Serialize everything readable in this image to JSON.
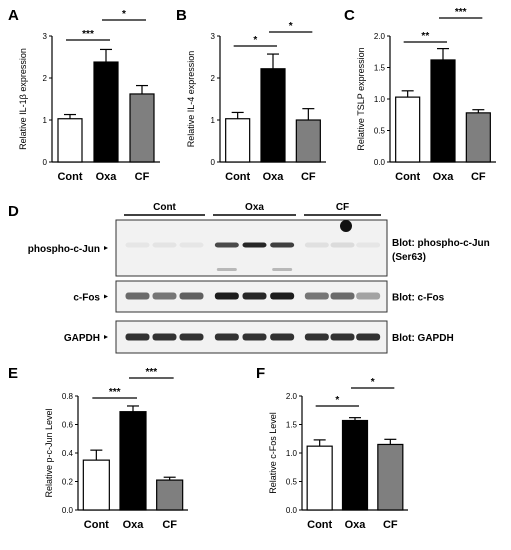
{
  "colors": {
    "cont": "#ffffff",
    "oxa": "#000000",
    "cf": "#7f7f7f",
    "axis": "#000000"
  },
  "chart_data": [
    {
      "panel": "A",
      "type": "bar",
      "categories": [
        "Cont",
        "Oxa",
        "CF"
      ],
      "values": [
        1.03,
        2.38,
        1.62
      ],
      "errors": [
        0.1,
        0.3,
        0.2
      ],
      "ylabel": "Relative IL-1β expression",
      "ylim": [
        0,
        3
      ],
      "yticks": [
        "0",
        "1",
        "2",
        "3"
      ],
      "significance": [
        {
          "from": 0,
          "to": 1,
          "label": "***"
        },
        {
          "from": 1,
          "to": 2,
          "label": "*"
        }
      ]
    },
    {
      "panel": "B",
      "type": "bar",
      "categories": [
        "Cont",
        "Oxa",
        "CF"
      ],
      "values": [
        1.03,
        2.22,
        1.0
      ],
      "errors": [
        0.15,
        0.35,
        0.27
      ],
      "ylabel": "Relative IL-4 expression",
      "ylim": [
        0,
        3
      ],
      "yticks": [
        "0",
        "1",
        "2",
        "3"
      ],
      "significance": [
        {
          "from": 0,
          "to": 1,
          "label": "*"
        },
        {
          "from": 1,
          "to": 2,
          "label": "*"
        }
      ]
    },
    {
      "panel": "C",
      "type": "bar",
      "categories": [
        "Cont",
        "Oxa",
        "CF"
      ],
      "values": [
        1.03,
        1.62,
        0.78
      ],
      "errors": [
        0.1,
        0.18,
        0.05
      ],
      "ylabel": "Relative TSLP expression",
      "ylim": [
        0,
        2
      ],
      "yticks": [
        "0.0",
        "0.5",
        "1.0",
        "1.5",
        "2.0"
      ],
      "significance": [
        {
          "from": 0,
          "to": 1,
          "label": "**"
        },
        {
          "from": 1,
          "to": 2,
          "label": "***"
        }
      ]
    },
    {
      "panel": "E",
      "type": "bar",
      "categories": [
        "Cont",
        "Oxa",
        "CF"
      ],
      "values": [
        0.35,
        0.69,
        0.21
      ],
      "errors": [
        0.07,
        0.04,
        0.02
      ],
      "ylabel": "Relative p-c-Jun Level",
      "ylim": [
        0,
        0.8
      ],
      "yticks": [
        "0.0",
        "0.2",
        "0.4",
        "0.6",
        "0.8"
      ],
      "significance": [
        {
          "from": 0,
          "to": 1,
          "label": "***"
        },
        {
          "from": 1,
          "to": 2,
          "label": "***"
        }
      ]
    },
    {
      "panel": "F",
      "type": "bar",
      "categories": [
        "Cont",
        "Oxa",
        "CF"
      ],
      "values": [
        1.12,
        1.57,
        1.15
      ],
      "errors": [
        0.11,
        0.05,
        0.09
      ],
      "ylabel": "Relative c-Fos Level",
      "ylim": [
        0,
        2.0
      ],
      "yticks": [
        "0.0",
        "0.5",
        "1.0",
        "1.5",
        "2.0"
      ],
      "significance": [
        {
          "from": 0,
          "to": 1,
          "label": "*"
        },
        {
          "from": 1,
          "to": 2,
          "label": "*"
        }
      ]
    }
  ],
  "blot": {
    "panel": "D",
    "groups": [
      "Cont",
      "Oxa",
      "CF"
    ],
    "lanes_per_group": 3,
    "rows": [
      {
        "left_label": "phospho-c-Jun",
        "right_label": "Blot: phospho-c-Jun",
        "right_sub": "(Ser63)"
      },
      {
        "left_label": "c-Fos",
        "right_label": "Blot: c-Fos",
        "right_sub": ""
      },
      {
        "left_label": "GAPDH",
        "right_label": "Blot: GAPDH",
        "right_sub": ""
      }
    ]
  }
}
